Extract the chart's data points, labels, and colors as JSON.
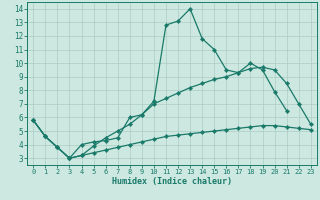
{
  "title": "",
  "xlabel": "Humidex (Indice chaleur)",
  "xlim": [
    -0.5,
    23.5
  ],
  "ylim": [
    2.5,
    14.5
  ],
  "xticks": [
    0,
    1,
    2,
    3,
    4,
    5,
    6,
    7,
    8,
    9,
    10,
    11,
    12,
    13,
    14,
    15,
    16,
    17,
    18,
    19,
    20,
    21,
    22,
    23
  ],
  "yticks": [
    3,
    4,
    5,
    6,
    7,
    8,
    9,
    10,
    11,
    12,
    13,
    14
  ],
  "background_color": "#cce8e0",
  "grid_color": "#aaccC4",
  "line_color": "#1a7a6a",
  "line1_x": [
    0,
    1,
    2,
    3,
    4,
    5,
    6,
    7,
    8,
    9,
    10,
    11,
    12,
    13,
    14,
    15,
    16,
    17,
    18,
    19,
    20,
    21
  ],
  "line1_y": [
    5.8,
    4.6,
    3.8,
    3.0,
    4.0,
    4.2,
    4.3,
    4.5,
    6.0,
    6.2,
    7.2,
    12.8,
    13.1,
    14.0,
    11.8,
    11.0,
    9.5,
    9.3,
    10.0,
    9.5,
    7.9,
    6.5
  ],
  "line2_x": [
    0,
    1,
    2,
    3,
    4,
    5,
    6,
    7,
    8,
    9,
    10,
    11,
    12,
    13,
    14,
    15,
    16,
    17,
    18,
    19,
    20,
    21,
    22,
    23
  ],
  "line2_y": [
    5.8,
    4.6,
    3.8,
    3.0,
    3.2,
    3.9,
    4.5,
    5.0,
    5.5,
    6.2,
    7.0,
    7.4,
    7.8,
    8.2,
    8.5,
    8.8,
    9.0,
    9.3,
    9.6,
    9.7,
    9.5,
    8.5,
    7.0,
    5.5
  ],
  "line3_x": [
    0,
    1,
    2,
    3,
    4,
    5,
    6,
    7,
    8,
    9,
    10,
    11,
    12,
    13,
    14,
    15,
    16,
    17,
    18,
    19,
    20,
    21,
    22,
    23
  ],
  "line3_y": [
    5.8,
    4.6,
    3.8,
    3.0,
    3.2,
    3.4,
    3.6,
    3.8,
    4.0,
    4.2,
    4.4,
    4.6,
    4.7,
    4.8,
    4.9,
    5.0,
    5.1,
    5.2,
    5.3,
    5.4,
    5.4,
    5.3,
    5.2,
    5.1
  ]
}
